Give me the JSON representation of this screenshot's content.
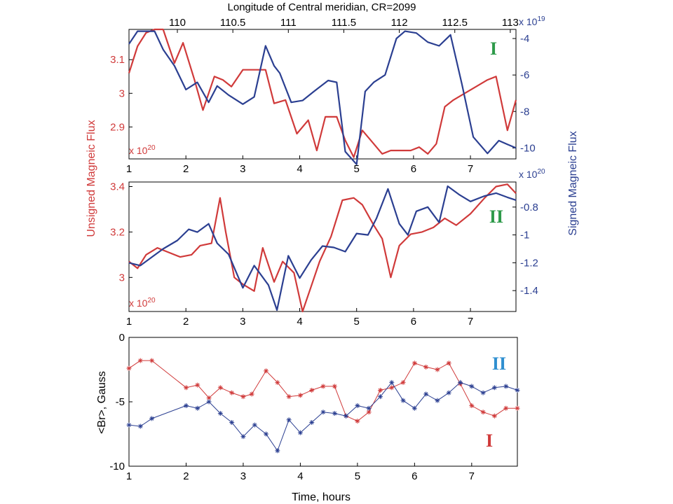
{
  "chart_data": [
    {
      "panel": "I",
      "type": "line",
      "top_axis": {
        "label": "Longitude of Central meridian, CR=2099",
        "ticks": [
          "110",
          "110.5",
          "111",
          "111.5",
          "112",
          "112.5",
          "113"
        ]
      },
      "xlim": [
        1,
        7.8
      ],
      "xticks": [
        "1",
        "2",
        "3",
        "4",
        "5",
        "6",
        "7"
      ],
      "y_left": {
        "ylim": [
          2.805,
          3.19
        ],
        "ticks": [
          "2.9",
          "3",
          "3.1"
        ],
        "multiplier": "x 10",
        "exponent": "20",
        "color": "#d03a3a"
      },
      "y_right": {
        "ylim": [
          -10.6,
          -3.5
        ],
        "ticks": [
          "-10",
          "-8",
          "-6",
          "-4"
        ],
        "multiplier": "x 10",
        "exponent": "19",
        "color": "#2b3f91"
      },
      "panel_label": {
        "text": "I",
        "color": "#2e9a4a"
      },
      "series": [
        {
          "axis": "left",
          "color": "#d03a3a",
          "x": [
            1.0,
            1.15,
            1.3,
            1.45,
            1.6,
            1.8,
            1.95,
            2.15,
            2.3,
            2.5,
            2.65,
            2.8,
            3.0,
            3.2,
            3.4,
            3.55,
            3.75,
            3.95,
            4.15,
            4.3,
            4.45,
            4.65,
            4.8,
            4.95,
            5.1,
            5.25,
            5.45,
            5.6,
            5.8,
            5.95,
            6.1,
            6.25,
            6.4,
            6.55,
            6.7,
            6.9,
            7.1,
            7.3,
            7.45,
            7.65,
            7.8
          ],
          "y": [
            3.06,
            3.14,
            3.18,
            3.19,
            3.19,
            3.09,
            3.15,
            3.04,
            2.95,
            3.05,
            3.04,
            3.02,
            3.07,
            3.07,
            3.07,
            2.97,
            2.98,
            2.88,
            2.92,
            2.83,
            2.93,
            2.93,
            2.86,
            2.81,
            2.89,
            2.86,
            2.82,
            2.83,
            2.83,
            2.83,
            2.84,
            2.82,
            2.85,
            2.96,
            2.98,
            3.0,
            3.02,
            3.04,
            3.05,
            2.89,
            2.98
          ]
        },
        {
          "axis": "right",
          "color": "#2b3f91",
          "x": [
            1.0,
            1.15,
            1.3,
            1.45,
            1.6,
            1.8,
            2.0,
            2.2,
            2.4,
            2.55,
            2.75,
            3.0,
            3.2,
            3.4,
            3.55,
            3.65,
            3.85,
            4.05,
            4.25,
            4.5,
            4.65,
            4.8,
            5.0,
            5.15,
            5.3,
            5.5,
            5.7,
            5.85,
            6.05,
            6.25,
            6.45,
            6.65,
            6.85,
            7.05,
            7.3,
            7.5,
            7.65,
            7.8
          ],
          "y": [
            -4.3,
            -3.6,
            -3.6,
            -3.6,
            -4.6,
            -5.5,
            -6.8,
            -6.4,
            -7.5,
            -6.6,
            -7.1,
            -7.6,
            -7.2,
            -4.4,
            -5.5,
            -5.9,
            -7.5,
            -7.4,
            -6.9,
            -6.3,
            -6.4,
            -10.2,
            -10.9,
            -6.9,
            -6.4,
            -6.0,
            -4.0,
            -3.6,
            -3.7,
            -4.2,
            -4.4,
            -3.8,
            -6.5,
            -9.4,
            -10.3,
            -9.6,
            -9.8,
            -10.0
          ]
        }
      ]
    },
    {
      "panel": "II",
      "type": "line",
      "xlim": [
        1,
        7.8
      ],
      "xticks": [
        "1",
        "2",
        "3",
        "4",
        "5",
        "6",
        "7"
      ],
      "y_left": {
        "ylim": [
          2.85,
          3.42
        ],
        "ticks": [
          "3",
          "3.2",
          "3.4"
        ],
        "multiplier": "x 10",
        "exponent": "20",
        "color": "#d03a3a"
      },
      "y_right": {
        "ylim": [
          -1.55,
          -0.62
        ],
        "ticks": [
          "-1.4",
          "-1.2",
          "-1",
          "-0.8"
        ],
        "multiplier": "x 10",
        "exponent": "20",
        "color": "#2b3f91"
      },
      "panel_label": {
        "text": "II",
        "color": "#2e9a4a"
      },
      "series": [
        {
          "axis": "left",
          "color": "#d03a3a",
          "x": [
            1.0,
            1.15,
            1.3,
            1.5,
            1.7,
            1.9,
            2.1,
            2.25,
            2.45,
            2.6,
            2.7,
            2.85,
            3.0,
            3.2,
            3.35,
            3.55,
            3.7,
            3.9,
            4.05,
            4.2,
            4.35,
            4.55,
            4.75,
            4.95,
            5.1,
            5.3,
            5.45,
            5.6,
            5.75,
            5.95,
            6.15,
            6.35,
            6.55,
            6.75,
            7.0,
            7.25,
            7.45,
            7.65,
            7.8
          ],
          "y": [
            3.07,
            3.04,
            3.1,
            3.13,
            3.11,
            3.09,
            3.1,
            3.14,
            3.15,
            3.35,
            3.2,
            3.0,
            2.97,
            2.94,
            3.13,
            2.98,
            3.07,
            3.02,
            2.85,
            2.96,
            3.07,
            3.18,
            3.34,
            3.35,
            3.32,
            3.23,
            3.17,
            3.0,
            3.14,
            3.19,
            3.2,
            3.22,
            3.26,
            3.23,
            3.28,
            3.35,
            3.4,
            3.41,
            3.37
          ]
        },
        {
          "axis": "right",
          "color": "#2b3f91",
          "x": [
            1.0,
            1.2,
            1.4,
            1.6,
            1.85,
            2.05,
            2.2,
            2.4,
            2.55,
            2.75,
            3.0,
            3.2,
            3.45,
            3.6,
            3.8,
            4.0,
            4.2,
            4.4,
            4.6,
            4.8,
            5.0,
            5.2,
            5.35,
            5.55,
            5.75,
            5.9,
            6.05,
            6.25,
            6.45,
            6.6,
            6.8,
            7.0,
            7.25,
            7.45,
            7.65,
            7.8
          ],
          "y": [
            -1.2,
            -1.22,
            -1.16,
            -1.1,
            -1.04,
            -0.96,
            -0.98,
            -0.92,
            -1.06,
            -1.14,
            -1.38,
            -1.22,
            -1.36,
            -1.54,
            -1.15,
            -1.31,
            -1.18,
            -1.08,
            -1.09,
            -1.12,
            -0.99,
            -1.0,
            -0.88,
            -0.67,
            -0.92,
            -1.0,
            -0.83,
            -0.8,
            -0.91,
            -0.65,
            -0.71,
            -0.76,
            -0.72,
            -0.7,
            -0.73,
            -0.75
          ]
        }
      ]
    },
    {
      "panel": "Br",
      "type": "line",
      "xlim": [
        1,
        7.8
      ],
      "xticks": [
        "1",
        "2",
        "3",
        "4",
        "5",
        "6",
        "7"
      ],
      "xlabel": "Time, hours",
      "ylabel": "<Br>, Gauss",
      "ylim": [
        -10,
        0
      ],
      "yticks": [
        "-10",
        "-5",
        "0"
      ],
      "labels": [
        {
          "text": "II",
          "color": "#2f8fd0"
        },
        {
          "text": "I",
          "color": "#d03a3a"
        }
      ],
      "series": [
        {
          "color": "#d03a3a",
          "marker": "*",
          "x": [
            1.0,
            1.2,
            1.4,
            2.0,
            2.2,
            2.4,
            2.6,
            2.8,
            3.0,
            3.15,
            3.4,
            3.6,
            3.8,
            4.0,
            4.2,
            4.4,
            4.6,
            4.8,
            5.0,
            5.2,
            5.4,
            5.6,
            5.8,
            6.0,
            6.2,
            6.4,
            6.6,
            6.8,
            7.0,
            7.2,
            7.4,
            7.6,
            7.8
          ],
          "y": [
            -2.4,
            -1.8,
            -1.8,
            -3.9,
            -3.7,
            -4.7,
            -3.9,
            -4.3,
            -4.6,
            -4.4,
            -2.6,
            -3.5,
            -4.6,
            -4.5,
            -4.1,
            -3.8,
            -3.8,
            -6.1,
            -6.5,
            -5.8,
            -4.1,
            -3.9,
            -3.5,
            -2.0,
            -2.3,
            -2.5,
            -2.0,
            -3.6,
            -5.3,
            -5.8,
            -6.1,
            -5.5,
            -5.5
          ]
        },
        {
          "color": "#2b3f91",
          "marker": "*",
          "x": [
            1.0,
            1.2,
            1.4,
            2.0,
            2.2,
            2.4,
            2.6,
            2.8,
            3.0,
            3.2,
            3.4,
            3.6,
            3.8,
            4.0,
            4.2,
            4.4,
            4.6,
            4.8,
            5.0,
            5.2,
            5.4,
            5.6,
            5.8,
            6.0,
            6.2,
            6.4,
            6.6,
            6.8,
            7.0,
            7.2,
            7.4,
            7.6,
            7.8
          ],
          "y": [
            -6.8,
            -6.9,
            -6.3,
            -5.3,
            -5.5,
            -5.0,
            -5.9,
            -6.6,
            -7.7,
            -6.8,
            -7.5,
            -8.8,
            -6.4,
            -7.4,
            -6.6,
            -5.8,
            -5.9,
            -6.1,
            -5.3,
            -5.5,
            -4.6,
            -3.5,
            -4.9,
            -5.5,
            -4.4,
            -4.9,
            -4.3,
            -3.5,
            -3.8,
            -4.3,
            -3.9,
            -3.8,
            -4.1
          ]
        }
      ]
    }
  ],
  "side_labels": {
    "left": "Unsigned Magneic Flux",
    "right": "Signed Magneic Flux"
  }
}
